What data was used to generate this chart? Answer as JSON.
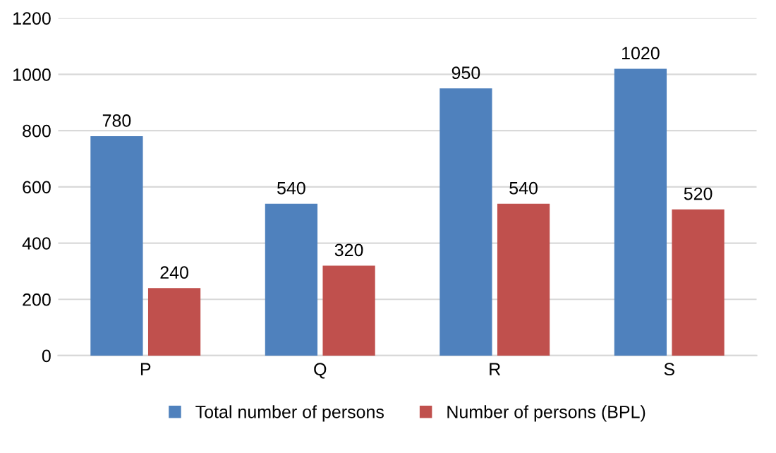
{
  "chart_data": {
    "type": "bar",
    "categories": [
      "P",
      "Q",
      "R",
      "S"
    ],
    "series": [
      {
        "name": "Total number of persons",
        "color": "#4f81bd",
        "values": [
          780,
          540,
          950,
          1020
        ]
      },
      {
        "name": "Number of persons (BPL)",
        "color": "#c0504d",
        "values": [
          240,
          320,
          540,
          520
        ]
      }
    ],
    "ylim": [
      0,
      1200
    ],
    "yticks": [
      0,
      200,
      400,
      600,
      800,
      1000,
      1200
    ],
    "grid": "y",
    "legend": "bottom",
    "data_labels": true
  }
}
